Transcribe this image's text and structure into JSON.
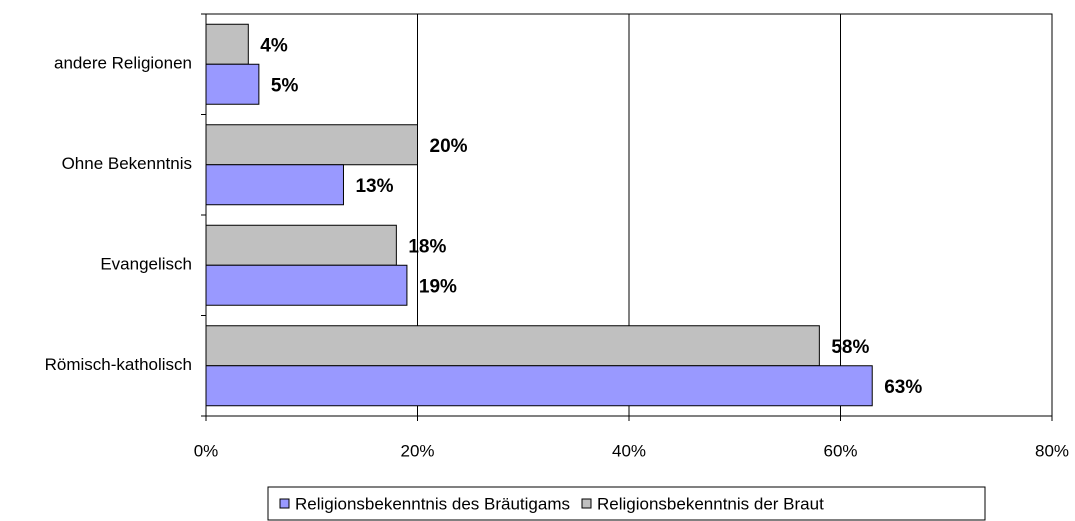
{
  "chart_data": {
    "type": "barh",
    "categories": [
      "andere Religionen",
      "Ohne Bekenntnis",
      "Evangelisch",
      "Römisch-katholisch"
    ],
    "series": [
      {
        "name": "Religionsbekenntnis des Bräutigams",
        "color": "#9999ff",
        "values": [
          5,
          13,
          19,
          63
        ],
        "value_labels": [
          "5%",
          "13%",
          "19%",
          "63%"
        ]
      },
      {
        "name": "Religionsbekenntnis der Braut",
        "color": "#c0c0c0",
        "values": [
          4,
          20,
          18,
          58
        ],
        "value_labels": [
          "4%",
          "20%",
          "18%",
          "58%"
        ]
      }
    ],
    "xlim": [
      0,
      80
    ],
    "xticks": [
      {
        "value": 0,
        "label": "0%"
      },
      {
        "value": 20,
        "label": "20%"
      },
      {
        "value": 40,
        "label": "40%"
      },
      {
        "value": 60,
        "label": "60%"
      },
      {
        "value": 80,
        "label": "80%"
      }
    ],
    "grid": true,
    "legend": "bottom"
  }
}
